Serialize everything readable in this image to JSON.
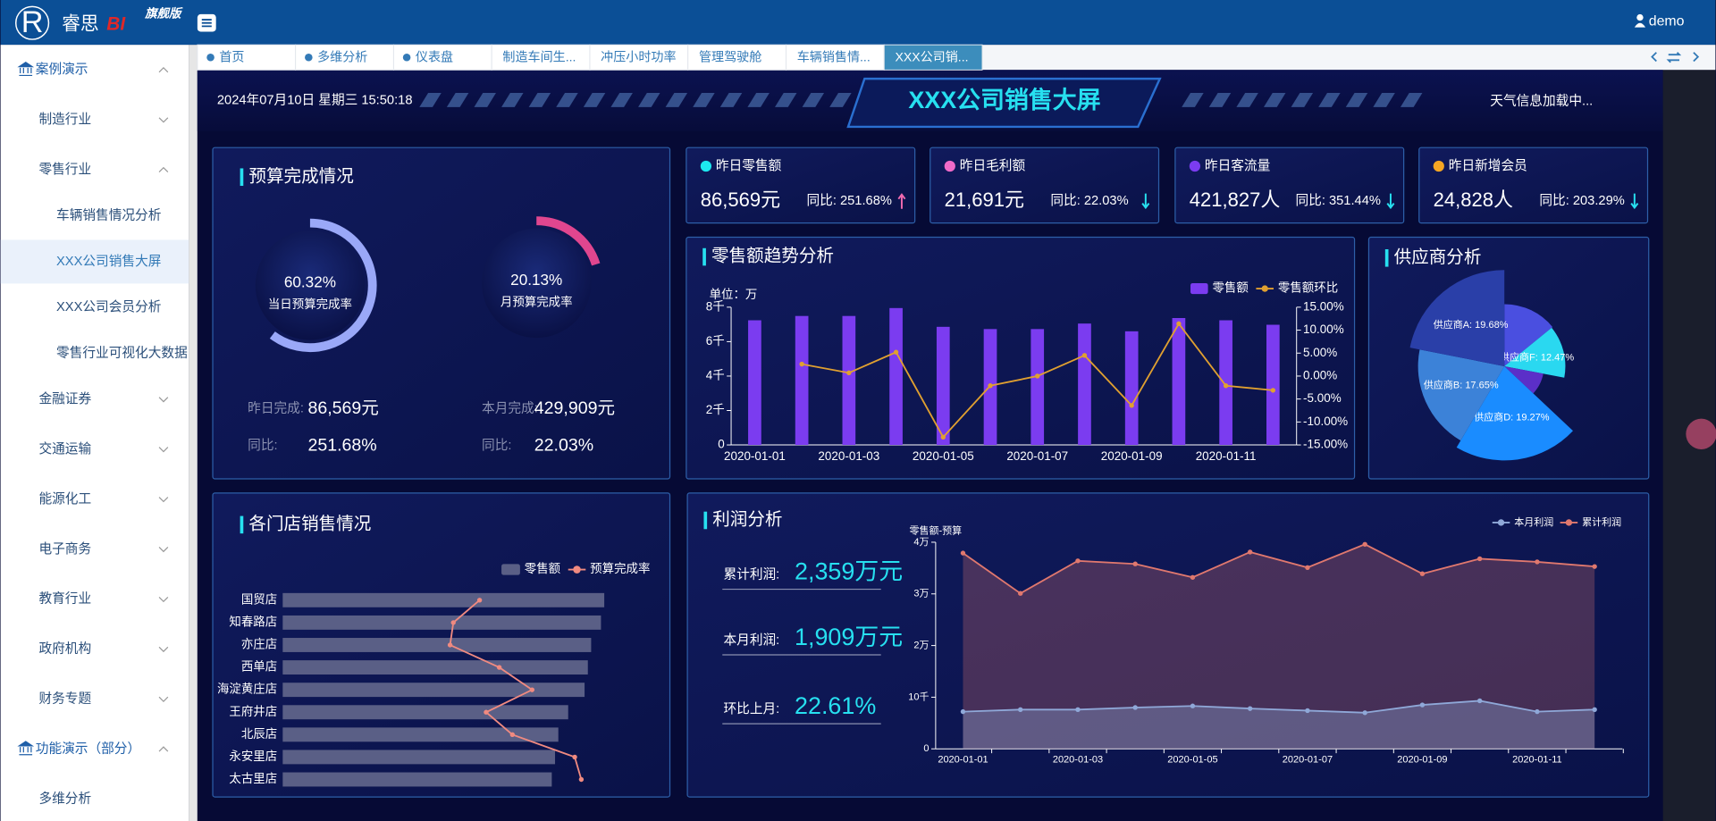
{
  "header": {
    "logo": "R",
    "brand": "睿思",
    "brand_suffix": "BI",
    "edition": "旗舰版",
    "user": "demo"
  },
  "sidebar": [
    {
      "label": "案例演示",
      "expanded": true,
      "children": [
        {
          "label": "制造行业",
          "expanded": false
        },
        {
          "label": "零售行业",
          "expanded": true,
          "children": [
            {
              "label": "车辆销售情况分析"
            },
            {
              "label": "XXX公司销售大屏",
              "active": true
            },
            {
              "label": "XXX公司会员分析"
            },
            {
              "label": "零售行业可视化大数据"
            }
          ]
        },
        {
          "label": "金融证券",
          "expanded": false
        },
        {
          "label": "交通运输",
          "expanded": false
        },
        {
          "label": "能源化工",
          "expanded": false
        },
        {
          "label": "电子商务",
          "expanded": false
        },
        {
          "label": "教育行业",
          "expanded": false
        },
        {
          "label": "政府机构",
          "expanded": false
        },
        {
          "label": "财务专题",
          "expanded": false
        }
      ]
    },
    {
      "label": "功能演示（部分）",
      "expanded": true,
      "children": [
        {
          "label": "多维分析"
        }
      ]
    }
  ],
  "tabs": {
    "items": [
      "首页",
      "多维分析",
      "仪表盘",
      "制造车间生...",
      "冲压小时功率",
      "管理驾驶舱",
      "车辆销售情...",
      "XXX公司销..."
    ],
    "active": 7
  },
  "screen": {
    "datetime": "2024年07月10日 星期三 15:50:18",
    "title": "XXX公司销售大屏",
    "weather": "天气信息加载中..."
  },
  "budget": {
    "title": "预算完成情况",
    "gauges": [
      {
        "value": 60.32,
        "label": "60.32%",
        "name": "当日预算完成率",
        "color": "#9aa8f8"
      },
      {
        "value": 20.13,
        "label": "20.13%",
        "name": "月预算完成率",
        "color": "#e0468f"
      }
    ],
    "stats": [
      [
        {
          "label": "昨日完成:",
          "value": "86,569元"
        },
        {
          "label": "同比:",
          "value": "251.68%"
        }
      ],
      [
        {
          "label": "本月完成:",
          "value": "429,909元"
        },
        {
          "label": "同比:",
          "value": "22.03%"
        }
      ]
    ]
  },
  "kpis": [
    {
      "title": "昨日零售额",
      "value": "86,569元",
      "change": "同比: 251.68%",
      "dot": "#1de9f0",
      "trend": "up"
    },
    {
      "title": "昨日毛利额",
      "value": "21,691元",
      "change": "同比: 22.03%",
      "dot": "#f06ac8",
      "trend": "down"
    },
    {
      "title": "昨日客流量",
      "value": "421,827人",
      "change": "同比: 351.44%",
      "dot": "#7b3cf0",
      "trend": "down"
    },
    {
      "title": "昨日新增会员",
      "value": "24,828人",
      "change": "同比: 203.29%",
      "dot": "#f5a623",
      "trend": "down"
    }
  ],
  "chart_data": [
    {
      "type": "bar_line",
      "title": "零售额趋势分析",
      "unit_label": "单位：万",
      "categories": [
        "2020-01-01",
        null,
        "2020-01-03",
        null,
        "2020-01-05",
        null,
        "2020-01-07",
        null,
        "2020-01-09",
        null,
        "2020-01-11",
        null
      ],
      "series": [
        {
          "name": "零售额",
          "color": "#7b3cf0",
          "values": [
            7240,
            7490,
            7490,
            7950,
            6860,
            6730,
            6730,
            7050,
            6600,
            7370,
            7240,
            6980
          ]
        },
        {
          "name": "零售额环比",
          "color": "#e0a030",
          "type": "line",
          "axis": "y2",
          "values": [
            null,
            2.6,
            0.7,
            5.2,
            -13.3,
            -2.1,
            0,
            4.5,
            -6.4,
            11.4,
            -2.1,
            -3.1
          ]
        }
      ],
      "ylim": [
        0,
        8000
      ],
      "yticks": [
        0,
        {
          "value": 2000,
          "label": "2千"
        },
        {
          "value": 4000,
          "label": "4千"
        },
        {
          "value": 6000,
          "label": "6千"
        },
        {
          "value": 8000,
          "label": "8千"
        }
      ],
      "y2lim": [
        -15,
        15
      ],
      "y2ticks": [
        {
          "value": -15,
          "label": "-15.00%"
        },
        {
          "value": -10,
          "label": "-10.00%"
        },
        {
          "value": -5,
          "label": "-5.00%"
        },
        {
          "value": 0,
          "label": "0.00%"
        },
        {
          "value": 5,
          "label": "5.00%"
        },
        {
          "value": 10,
          "label": "10.00%"
        },
        {
          "value": 15,
          "label": "15.00%"
        }
      ]
    },
    {
      "type": "pie",
      "rose": true,
      "title": "供应商分析",
      "values": [
        12.7,
        12.47,
        8.1,
        19.27,
        17.65,
        19.68
      ],
      "value_labels": [
        null,
        "供应商F: 12.47%",
        null,
        "供应商D: 19.27%",
        "供应商B: 17.65%",
        "供应商A: 19.68%"
      ],
      "colors": [
        "#4a4fe0",
        "#2ad8f0",
        "#5b2fc8",
        "#1a8cff",
        "#3c82d8",
        "#2a3fa8"
      ]
    },
    {
      "type": "hbar_line",
      "title": "各门店销售情况",
      "categories": [
        "国贸店",
        "知春路店",
        "亦庄店",
        "西单店",
        "海淀黄庄店",
        "王府井店",
        "北辰店",
        "永安里店",
        "太古里店"
      ],
      "series": [
        {
          "name": "零售额",
          "color": "#5a5f86",
          "values": [
            98,
            97,
            94,
            93,
            92,
            87,
            84,
            83,
            82
          ]
        },
        {
          "name": "预算完成率",
          "color": "#f08a80",
          "type": "line",
          "values": [
            60,
            52,
            51,
            66,
            76,
            62,
            70,
            89,
            91
          ]
        }
      ],
      "xlim": [
        0,
        100
      ]
    },
    {
      "type": "area",
      "title": "利润分析",
      "y_label": "零售额-预算",
      "stats": [
        {
          "label": "累计利润:",
          "value": "2,359万元"
        },
        {
          "label": "本月利润:",
          "value": "1,909万元"
        },
        {
          "label": "环比上月:",
          "value": "22.61%"
        }
      ],
      "x": [
        "2020-01-01",
        null,
        "2020-01-03",
        null,
        "2020-01-05",
        null,
        "2020-01-07",
        null,
        "2020-01-09",
        null,
        "2020-01-11",
        null
      ],
      "series": [
        {
          "name": "本月利润",
          "color": "#8fa8d8",
          "values": [
            7200,
            7600,
            7600,
            8000,
            8300,
            7800,
            7400,
            7000,
            8500,
            9300,
            7200,
            7600
          ]
        },
        {
          "name": "累计利润",
          "color": "#e0786e",
          "values": [
            37900,
            30100,
            36400,
            35800,
            33200,
            38100,
            35100,
            39600,
            33900,
            36800,
            36200,
            35300
          ]
        }
      ],
      "ylim": [
        0,
        40000
      ],
      "yticks": [
        0,
        {
          "value": 10000,
          "label": "10千"
        },
        {
          "value": 20000,
          "label": "2万"
        },
        {
          "value": 30000,
          "label": "3万"
        },
        {
          "value": 40000,
          "label": "4万"
        }
      ]
    }
  ]
}
